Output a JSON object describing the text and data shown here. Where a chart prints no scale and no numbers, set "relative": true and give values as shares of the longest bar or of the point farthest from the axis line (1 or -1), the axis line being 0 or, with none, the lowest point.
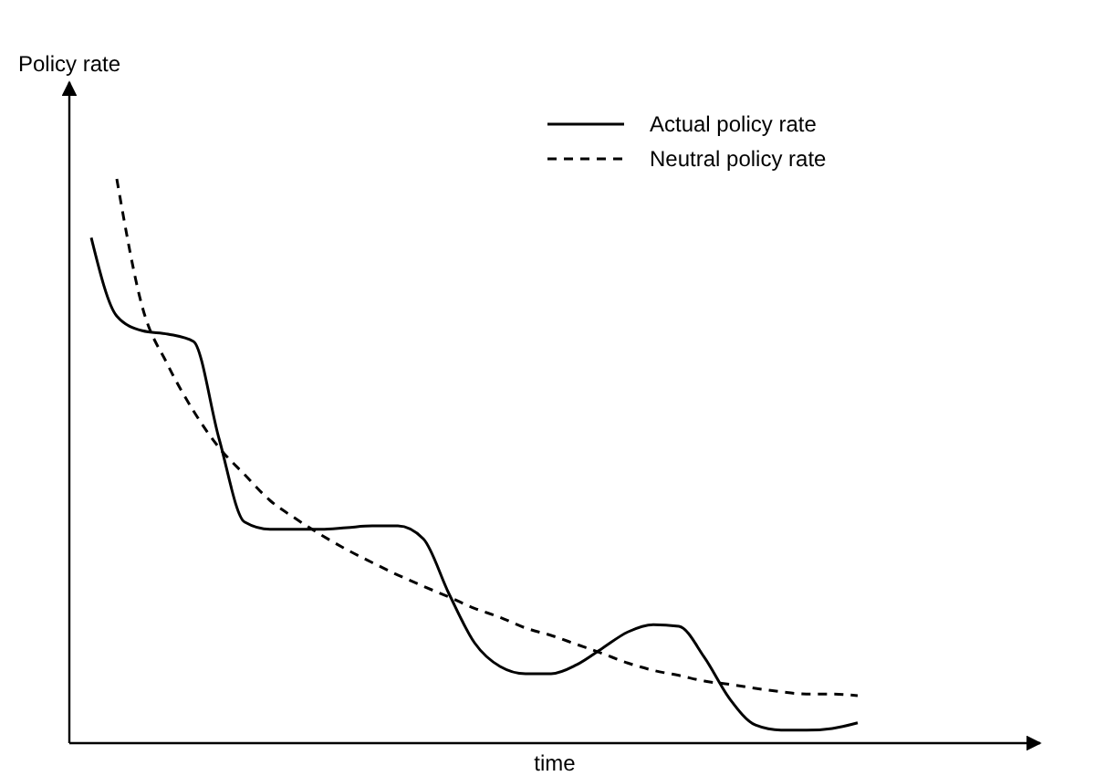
{
  "chart_data": {
    "type": "line",
    "relative": true,
    "xlabel": "time",
    "ylabel": "Policy rate",
    "legend": "top right",
    "categories": [
      null,
      null,
      null,
      null,
      null,
      null,
      null,
      null,
      null,
      null,
      null,
      null,
      null,
      null,
      null,
      null,
      null,
      null,
      null,
      null,
      null,
      null,
      null,
      null,
      null,
      null,
      null,
      null,
      null,
      null,
      null
    ],
    "series": [
      {
        "name": "Actual policy rate",
        "color": "#000000",
        "line_style": "solid",
        "values": [
          0.896,
          0.757,
          0.731,
          0.725,
          0.712,
          0.54,
          0.392,
          0.379,
          0.379,
          0.379,
          0.382,
          0.385,
          0.385,
          0.362,
          0.265,
          0.178,
          0.136,
          0.123,
          0.123,
          0.139,
          0.168,
          0.197,
          0.21,
          0.207,
          0.152,
          0.078,
          0.032,
          0.023,
          0.023,
          0.026,
          0.036
        ]
      },
      {
        "name": "Neutral policy rate",
        "color": "#000000",
        "line_style": "dashed",
        "values": [
          null,
          1,
          0.773,
          0.67,
          0.589,
          0.524,
          0.476,
          0.43,
          0.398,
          0.369,
          0.343,
          0.32,
          0.298,
          0.278,
          0.259,
          0.239,
          0.223,
          0.204,
          0.191,
          0.175,
          0.159,
          0.142,
          0.129,
          0.12,
          0.11,
          0.104,
          0.097,
          0.091,
          0.087,
          0.087,
          0.084
        ]
      }
    ]
  }
}
